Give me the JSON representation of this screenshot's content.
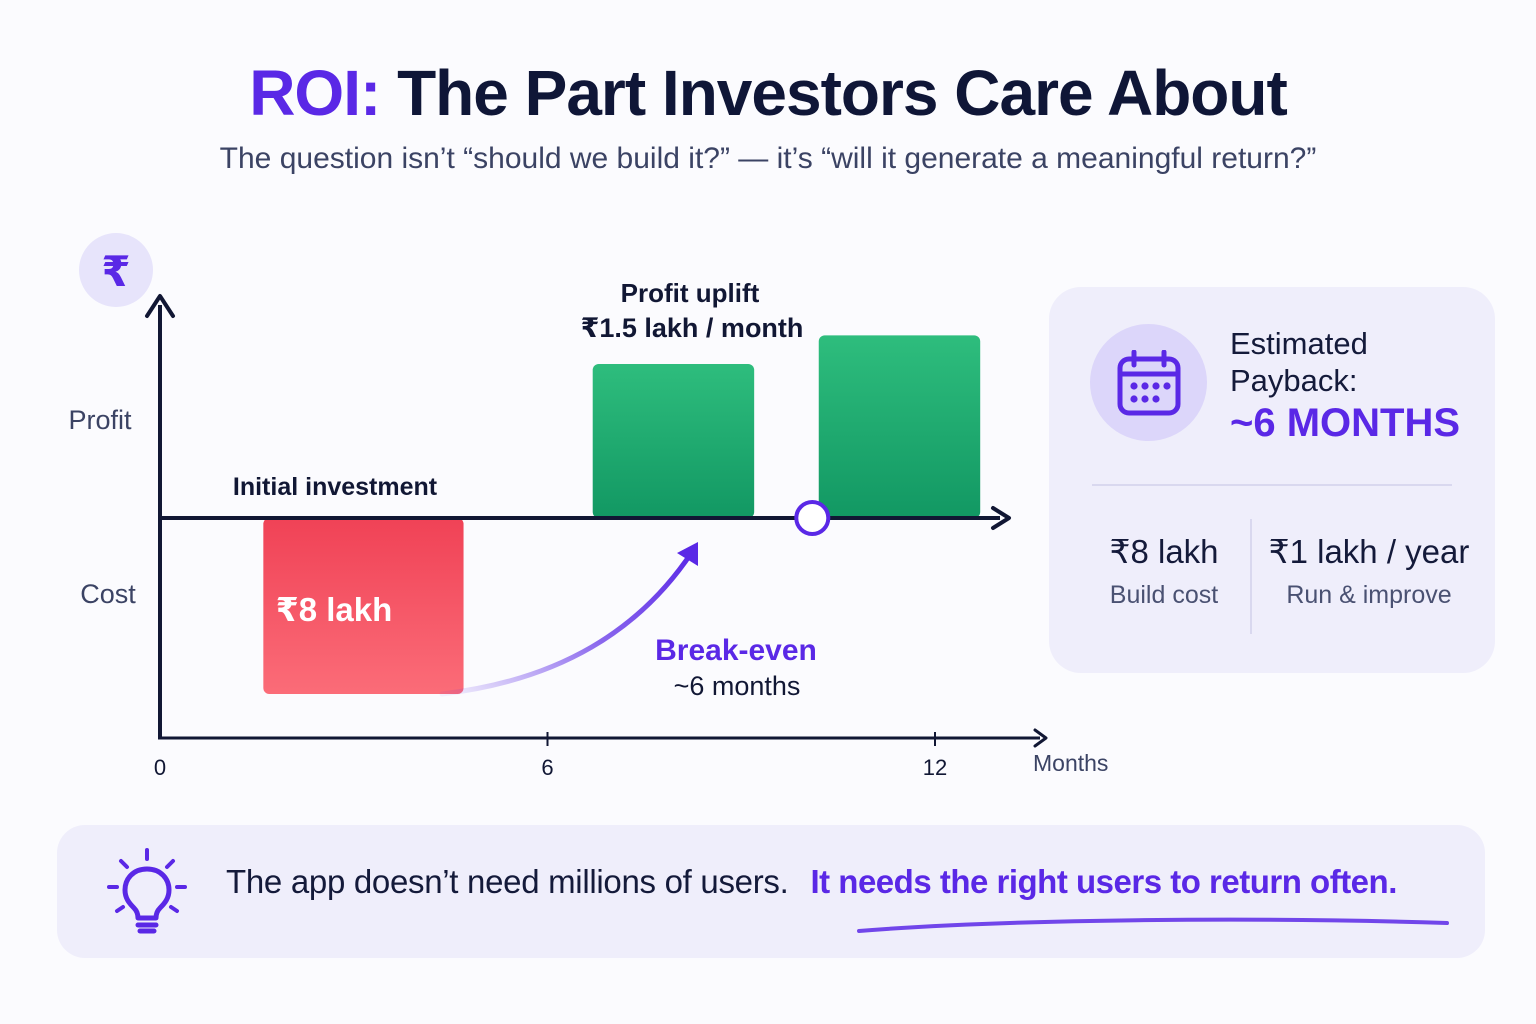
{
  "header": {
    "title_accent": "ROI:",
    "title_rest": "The Part Investors Care About",
    "subtitle": "The question isn’t “should we build it?” — it’s “will it generate a meaningful return?”"
  },
  "chart_data": {
    "type": "bar",
    "y_icon": "rupee-icon",
    "y_icon_label": "₹",
    "ylabel_top": "Profit",
    "ylabel_bottom": "Cost",
    "xlabel": "Months",
    "x_ticks": [
      0,
      6,
      12
    ],
    "xlim": [
      0,
      12
    ],
    "bars": [
      {
        "name": "investment",
        "x_start": 1.6,
        "x_end": 4.7,
        "value": -8,
        "color": "#ef4458"
      },
      {
        "name": "profit-1",
        "x_start": 6.7,
        "x_end": 9.2,
        "value": 7,
        "color": "#1fa56c"
      },
      {
        "name": "profit-2",
        "x_start": 10.2,
        "x_end": 12.7,
        "value": 8.3,
        "color": "#1fa56c"
      }
    ],
    "annotations": {
      "investment_label": "Initial investment",
      "investment_value": "₹8 lakh",
      "profit_title": "Profit uplift",
      "profit_value": "₹1.5 lakh / month",
      "breakeven_title": "Break-even",
      "breakeven_value": "~6 months",
      "breakeven_x": 10.1
    },
    "colors": {
      "axis": "#111734",
      "accent": "#5a28e6",
      "cost": "#ef4458",
      "profit": "#1fa56c"
    }
  },
  "payback": {
    "icon": "calendar-icon",
    "label": "Estimated Payback:",
    "value": "~6 MONTHS",
    "stats": [
      {
        "value": "₹8 lakh",
        "label": "Build cost"
      },
      {
        "value": "₹1 lakh / year",
        "label": "Run & improve"
      }
    ]
  },
  "callout": {
    "icon": "lightbulb-icon",
    "text": "The app doesn’t need millions of users.",
    "highlight": "It needs the right users to return often."
  }
}
